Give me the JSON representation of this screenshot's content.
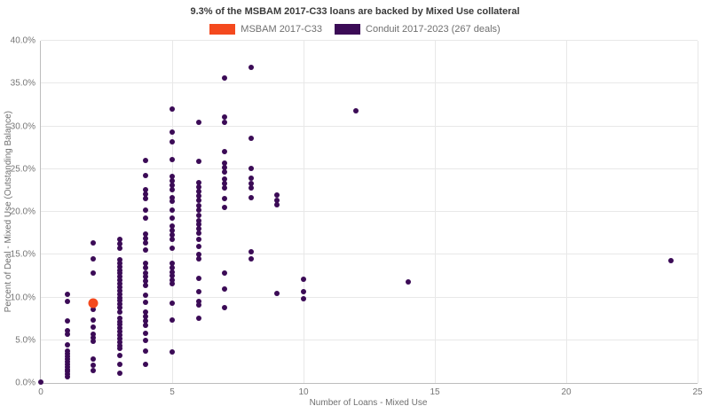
{
  "title": "9.3% of the MSBAM 2017-C33 loans are backed by Mixed Use collateral",
  "legend": [
    {
      "label": "MSBAM 2017-C33",
      "color": "#f4491e"
    },
    {
      "label": "Conduit 2017-2023 (267 deals)",
      "color": "#3b0b56"
    }
  ],
  "colors": {
    "accent_orange": "#f4491e",
    "accent_purple": "#3b0b56",
    "gridline": "#e8e8e8",
    "axis_line": "#bdbdbd",
    "tick_text": "#757575"
  },
  "chart_data": {
    "type": "scatter",
    "title": "9.3% of the MSBAM 2017-C33 loans are backed by Mixed Use collateral",
    "xlabel": "Number of Loans - Mixed Use",
    "ylabel": "Percent of Deal - Mixed Use (Outstanding Balance)",
    "xlim": [
      0,
      25
    ],
    "ylim": [
      0,
      40
    ],
    "x_ticks": [
      0,
      5,
      10,
      15,
      20,
      25
    ],
    "y_tick_labels": [
      "0.0%",
      "5.0%",
      "10.0%",
      "15.0%",
      "20.0%",
      "25.0%",
      "30.0%",
      "35.0%",
      "40.0%"
    ],
    "grid": true,
    "legend_position": "top-center",
    "series": [
      {
        "name": "MSBAM 2017-C33",
        "color": "#f4491e",
        "marker_size": 11,
        "points": [
          [
            2,
            9.3
          ]
        ]
      },
      {
        "name": "Conduit 2017-2023 (267 deals)",
        "color": "#3b0b56",
        "marker_size": 6,
        "points": [
          [
            0,
            0.1
          ],
          [
            1,
            10.4
          ],
          [
            1,
            9.5
          ],
          [
            1,
            7.3
          ],
          [
            1,
            6.1
          ],
          [
            1,
            5.7
          ],
          [
            1,
            4.5
          ],
          [
            1,
            3.7
          ],
          [
            1,
            3.4
          ],
          [
            1,
            3.1
          ],
          [
            1,
            2.8
          ],
          [
            1,
            2.5
          ],
          [
            1,
            2.2
          ],
          [
            1,
            1.9
          ],
          [
            1,
            1.6
          ],
          [
            1,
            1.3
          ],
          [
            1,
            1.0
          ],
          [
            1,
            0.7
          ],
          [
            2,
            16.4
          ],
          [
            2,
            14.5
          ],
          [
            2,
            12.9
          ],
          [
            2,
            8.6
          ],
          [
            2,
            7.4
          ],
          [
            2,
            6.5
          ],
          [
            2,
            5.7
          ],
          [
            2,
            5.3
          ],
          [
            2,
            4.9
          ],
          [
            2,
            2.8
          ],
          [
            2,
            2.1
          ],
          [
            2,
            1.5
          ],
          [
            3,
            16.8
          ],
          [
            3,
            16.3
          ],
          [
            3,
            15.8
          ],
          [
            3,
            14.4
          ],
          [
            3,
            14.0
          ],
          [
            3,
            13.6
          ],
          [
            3,
            13.2
          ],
          [
            3,
            12.8
          ],
          [
            3,
            12.4
          ],
          [
            3,
            12.0
          ],
          [
            3,
            11.6
          ],
          [
            3,
            11.2
          ],
          [
            3,
            10.8
          ],
          [
            3,
            10.4
          ],
          [
            3,
            10.0
          ],
          [
            3,
            9.6
          ],
          [
            3,
            9.2
          ],
          [
            3,
            8.8
          ],
          [
            3,
            8.3
          ],
          [
            3,
            7.6
          ],
          [
            3,
            7.2
          ],
          [
            3,
            6.8
          ],
          [
            3,
            6.4
          ],
          [
            3,
            6.0
          ],
          [
            3,
            5.6
          ],
          [
            3,
            5.2
          ],
          [
            3,
            4.8
          ],
          [
            3,
            4.4
          ],
          [
            3,
            4.0
          ],
          [
            3,
            3.2
          ],
          [
            3,
            2.2
          ],
          [
            3,
            1.1
          ],
          [
            4,
            26.0
          ],
          [
            4,
            24.2
          ],
          [
            4,
            22.6
          ],
          [
            4,
            22.1
          ],
          [
            4,
            21.6
          ],
          [
            4,
            20.2
          ],
          [
            4,
            19.3
          ],
          [
            4,
            17.4
          ],
          [
            4,
            16.9
          ],
          [
            4,
            16.4
          ],
          [
            4,
            15.5
          ],
          [
            4,
            14.0
          ],
          [
            4,
            13.5
          ],
          [
            4,
            12.9
          ],
          [
            4,
            12.4
          ],
          [
            4,
            11.9
          ],
          [
            4,
            11.4
          ],
          [
            4,
            10.3
          ],
          [
            4,
            9.4
          ],
          [
            4,
            8.3
          ],
          [
            4,
            7.8
          ],
          [
            4,
            7.3
          ],
          [
            4,
            6.7
          ],
          [
            4,
            5.8
          ],
          [
            4,
            5.0
          ],
          [
            4,
            3.7
          ],
          [
            4,
            2.2
          ],
          [
            5,
            32.0
          ],
          [
            5,
            29.3
          ],
          [
            5,
            28.2
          ],
          [
            5,
            26.1
          ],
          [
            5,
            24.1
          ],
          [
            5,
            23.6
          ],
          [
            5,
            23.1
          ],
          [
            5,
            22.6
          ],
          [
            5,
            21.7
          ],
          [
            5,
            21.2
          ],
          [
            5,
            20.2
          ],
          [
            5,
            19.3
          ],
          [
            5,
            18.3
          ],
          [
            5,
            17.8
          ],
          [
            5,
            17.3
          ],
          [
            5,
            16.8
          ],
          [
            5,
            15.8
          ],
          [
            5,
            14.0
          ],
          [
            5,
            13.5
          ],
          [
            5,
            13.0
          ],
          [
            5,
            12.5
          ],
          [
            5,
            12.0
          ],
          [
            5,
            11.6
          ],
          [
            5,
            9.3
          ],
          [
            5,
            7.4
          ],
          [
            5,
            3.6
          ],
          [
            6,
            30.5
          ],
          [
            6,
            25.9
          ],
          [
            6,
            23.4
          ],
          [
            6,
            22.9
          ],
          [
            6,
            22.4
          ],
          [
            6,
            21.9
          ],
          [
            6,
            21.3
          ],
          [
            6,
            20.7
          ],
          [
            6,
            20.2
          ],
          [
            6,
            19.6
          ],
          [
            6,
            19.0
          ],
          [
            6,
            18.5
          ],
          [
            6,
            18.0
          ],
          [
            6,
            17.5
          ],
          [
            6,
            16.8
          ],
          [
            6,
            16.0
          ],
          [
            6,
            15.0
          ],
          [
            6,
            14.5
          ],
          [
            6,
            12.2
          ],
          [
            6,
            10.7
          ],
          [
            6,
            9.5
          ],
          [
            6,
            9.1
          ],
          [
            6,
            7.6
          ],
          [
            7,
            35.6
          ],
          [
            7,
            31.1
          ],
          [
            7,
            30.5
          ],
          [
            7,
            27.1
          ],
          [
            7,
            25.7
          ],
          [
            7,
            25.2
          ],
          [
            7,
            24.7
          ],
          [
            7,
            23.8
          ],
          [
            7,
            23.3
          ],
          [
            7,
            22.8
          ],
          [
            7,
            21.6
          ],
          [
            7,
            20.5
          ],
          [
            7,
            12.9
          ],
          [
            7,
            11.0
          ],
          [
            7,
            8.8
          ],
          [
            8,
            36.9
          ],
          [
            8,
            28.6
          ],
          [
            8,
            25.1
          ],
          [
            8,
            23.9
          ],
          [
            8,
            23.3
          ],
          [
            8,
            22.8
          ],
          [
            8,
            21.7
          ],
          [
            8,
            15.3
          ],
          [
            8,
            14.5
          ],
          [
            9,
            22.0
          ],
          [
            9,
            21.4
          ],
          [
            9,
            20.8
          ],
          [
            9,
            10.5
          ],
          [
            10,
            12.1
          ],
          [
            10,
            10.7
          ],
          [
            10,
            9.8
          ],
          [
            12,
            31.8
          ],
          [
            14,
            11.8
          ],
          [
            24,
            14.3
          ]
        ]
      }
    ]
  }
}
